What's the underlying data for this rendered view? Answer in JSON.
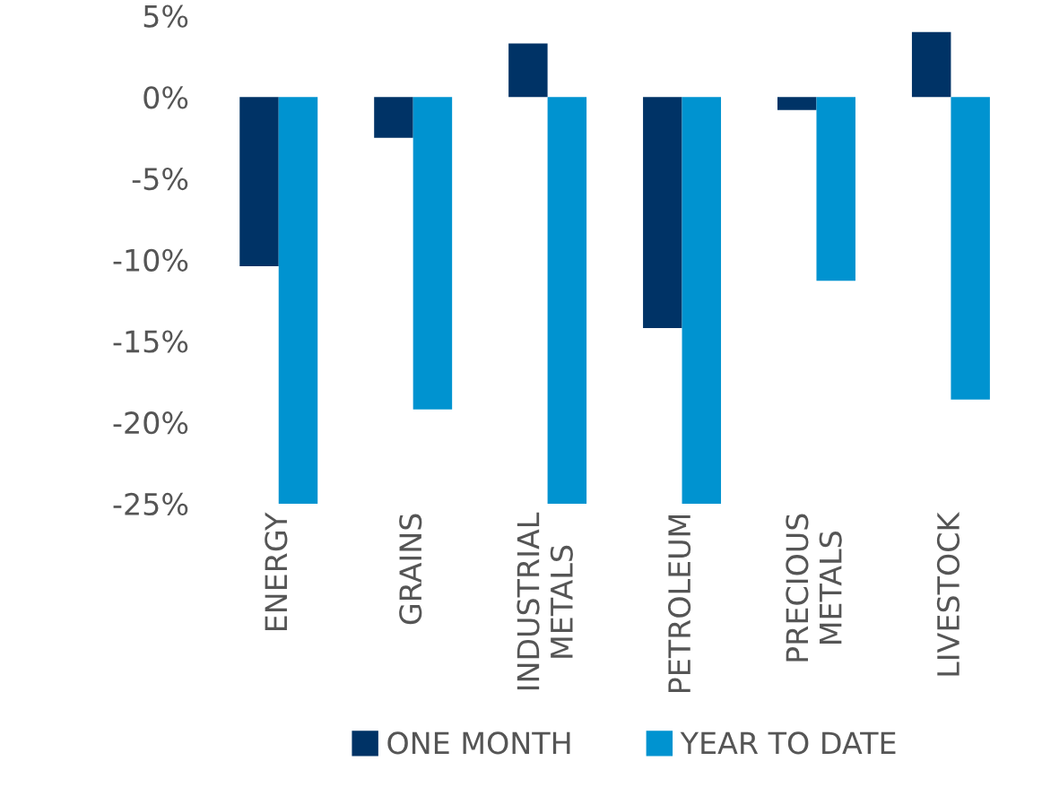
{
  "chart_data": {
    "type": "bar",
    "categories": [
      "ENERGY",
      "GRAINS",
      "INDUSTRIAL\nMETALS",
      "PETROLEUM",
      "PRECIOUS\nMETALS",
      "LIVESTOCK"
    ],
    "series": [
      {
        "name": "ONE MONTH",
        "color": "#003366",
        "values": [
          -10.4,
          -2.5,
          3.3,
          -14.2,
          -0.8,
          4.0
        ]
      },
      {
        "name": "YEAR TO DATE",
        "color": "#0093d0",
        "values": [
          -25,
          -19.2,
          -25,
          -25,
          -11.3,
          -18.6
        ]
      }
    ],
    "ylim": [
      -25,
      5
    ],
    "yticks": [
      {
        "value": 5,
        "label": "5%"
      },
      {
        "value": 0,
        "label": "0%"
      },
      {
        "value": -5,
        "label": "-5%"
      },
      {
        "value": -10,
        "label": "-10%"
      },
      {
        "value": -15,
        "label": "-15%"
      },
      {
        "value": -20,
        "label": "-20%"
      },
      {
        "value": -25,
        "label": "-25%"
      }
    ],
    "grid": false,
    "legend": "bottom"
  }
}
